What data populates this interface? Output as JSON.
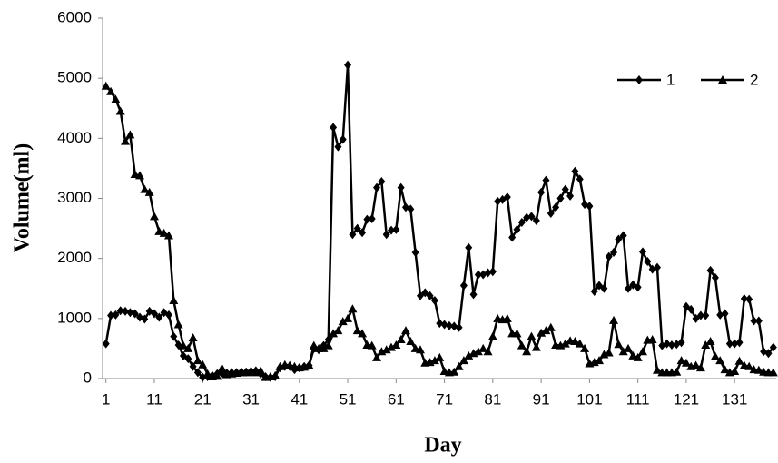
{
  "chart_data": {
    "type": "line",
    "x_label": "Day",
    "y_label": "Volume(ml)",
    "x": [
      1,
      2,
      3,
      4,
      5,
      6,
      7,
      8,
      9,
      10,
      11,
      12,
      13,
      14,
      15,
      16,
      17,
      18,
      19,
      20,
      21,
      22,
      23,
      24,
      25,
      26,
      27,
      28,
      29,
      30,
      31,
      32,
      33,
      34,
      35,
      36,
      37,
      38,
      39,
      40,
      41,
      42,
      43,
      44,
      45,
      46,
      47,
      48,
      49,
      50,
      51,
      52,
      53,
      54,
      55,
      56,
      57,
      58,
      59,
      60,
      61,
      62,
      63,
      64,
      65,
      66,
      67,
      68,
      69,
      70,
      71,
      72,
      73,
      74,
      75,
      76,
      77,
      78,
      79,
      80,
      81,
      82,
      83,
      84,
      85,
      86,
      87,
      88,
      89,
      90,
      91,
      92,
      93,
      94,
      95,
      96,
      97,
      98,
      99,
      100,
      101,
      102,
      103,
      104,
      105,
      106,
      107,
      108,
      109,
      110,
      111,
      112,
      113,
      114,
      115,
      116,
      117,
      118,
      119,
      120,
      121,
      122,
      123,
      124,
      125,
      126,
      127,
      128,
      129,
      130,
      131,
      132,
      133,
      134,
      135,
      136,
      137,
      138,
      139
    ],
    "series": [
      {
        "name": "1",
        "color": "#000000",
        "marker": "diamond",
        "values": [
          580,
          1050,
          1060,
          1130,
          1120,
          1100,
          1080,
          1020,
          990,
          1120,
          1080,
          1020,
          1100,
          1060,
          700,
          560,
          380,
          330,
          200,
          100,
          20,
          30,
          50,
          80,
          80,
          90,
          100,
          100,
          110,
          110,
          120,
          130,
          80,
          30,
          20,
          30,
          180,
          200,
          200,
          150,
          180,
          200,
          220,
          500,
          480,
          550,
          650,
          4180,
          3860,
          3980,
          5220,
          2400,
          2500,
          2430,
          2650,
          2660,
          3180,
          3280,
          2400,
          2470,
          2480,
          3180,
          2850,
          2820,
          2100,
          1380,
          1430,
          1380,
          1300,
          920,
          900,
          880,
          870,
          850,
          1550,
          2180,
          1400,
          1730,
          1730,
          1760,
          1780,
          2950,
          2980,
          3020,
          2350,
          2480,
          2600,
          2680,
          2700,
          2630,
          3100,
          3300,
          2750,
          2850,
          3000,
          3150,
          3040,
          3450,
          3320,
          2900,
          2870,
          1450,
          1550,
          1500,
          2030,
          2100,
          2320,
          2380,
          1500,
          1560,
          1520,
          2110,
          1950,
          1820,
          1850,
          550,
          580,
          560,
          570,
          600,
          1200,
          1150,
          1000,
          1050,
          1050,
          1800,
          1680,
          1060,
          1080,
          580,
          580,
          600,
          1330,
          1320,
          960,
          960,
          450,
          420,
          520
        ]
      },
      {
        "name": "2",
        "color": "#000000",
        "marker": "triangle",
        "values": [
          4870,
          4780,
          4650,
          4450,
          3950,
          4060,
          3400,
          3380,
          3150,
          3100,
          2700,
          2450,
          2420,
          2380,
          1300,
          900,
          550,
          500,
          680,
          300,
          230,
          80,
          30,
          40,
          170,
          70,
          80,
          90,
          100,
          100,
          110,
          100,
          130,
          20,
          30,
          50,
          200,
          230,
          220,
          200,
          180,
          190,
          220,
          550,
          500,
          500,
          550,
          750,
          800,
          950,
          1000,
          1160,
          800,
          750,
          560,
          550,
          350,
          450,
          480,
          520,
          560,
          650,
          800,
          620,
          500,
          480,
          260,
          270,
          300,
          350,
          120,
          100,
          110,
          200,
          300,
          380,
          420,
          450,
          500,
          450,
          700,
          1000,
          980,
          1000,
          750,
          750,
          550,
          450,
          700,
          520,
          760,
          800,
          850,
          560,
          550,
          580,
          630,
          620,
          580,
          500,
          250,
          270,
          300,
          400,
          430,
          970,
          570,
          450,
          500,
          380,
          350,
          450,
          640,
          650,
          140,
          100,
          100,
          100,
          110,
          300,
          260,
          200,
          220,
          180,
          560,
          620,
          370,
          300,
          150,
          100,
          120,
          290,
          220,
          200,
          150,
          140,
          110,
          100,
          100
        ]
      }
    ],
    "xlim": [
      0.3,
      139.6
    ],
    "xticks": [
      1,
      11,
      21,
      31,
      41,
      51,
      61,
      71,
      81,
      91,
      101,
      111,
      121,
      131
    ],
    "ylim": [
      0,
      6000
    ],
    "yticks": [
      0,
      1000,
      2000,
      3000,
      4000,
      5000,
      6000
    ],
    "grid": false,
    "legend": "upper right"
  }
}
